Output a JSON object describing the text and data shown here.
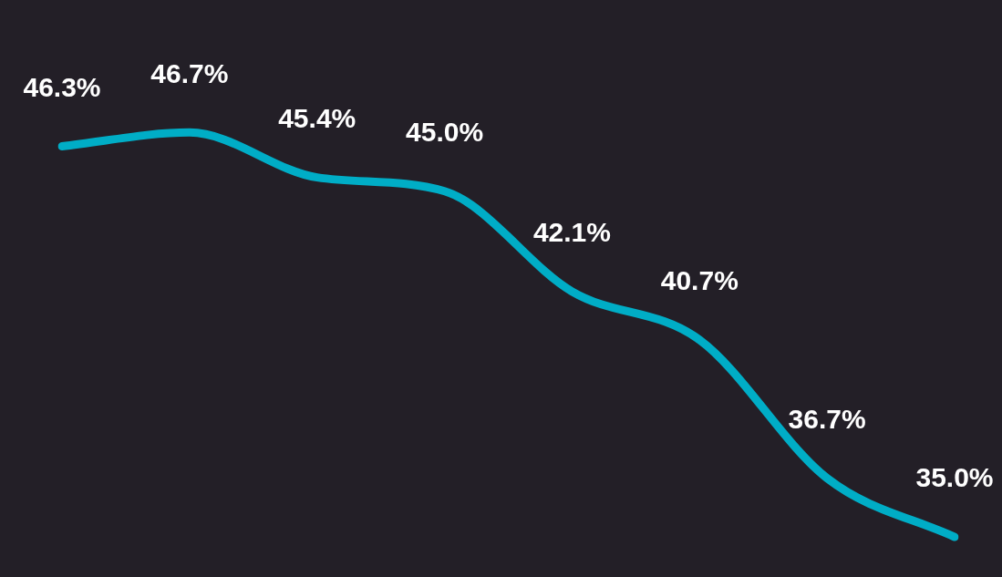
{
  "chart_data": {
    "type": "line",
    "categories": [
      null,
      null,
      null,
      null,
      null,
      null,
      null,
      null
    ],
    "values": [
      46.3,
      46.7,
      45.4,
      45.0,
      42.1,
      40.7,
      36.7,
      35.0
    ],
    "value_labels": [
      "46.3%",
      "46.7%",
      "45.4%",
      "45.0%",
      "42.1%",
      "40.7%",
      "36.7%",
      "35.0%"
    ],
    "color": "#00adc6",
    "tick_labels": false
  }
}
